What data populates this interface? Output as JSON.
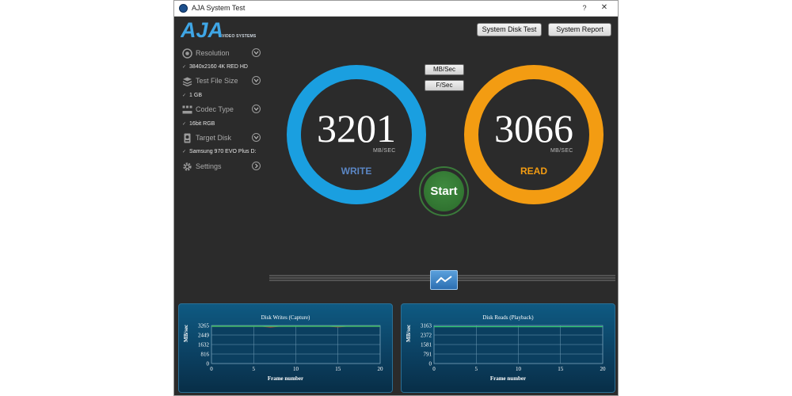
{
  "window": {
    "title": "AJA System Test",
    "help": "?",
    "close": "✕"
  },
  "logo": {
    "text": "AJA",
    "subtitle": "VIDEO SYSTEMS"
  },
  "sidebar": {
    "items": [
      {
        "label": "Resolution",
        "value": "3840x2160 4K RED HD",
        "icon": "resolution-icon"
      },
      {
        "label": "Test File Size",
        "value": "1 GB",
        "icon": "file-size-icon"
      },
      {
        "label": "Codec Type",
        "value": "16bit RGB",
        "icon": "codec-icon"
      },
      {
        "label": "Target Disk",
        "value": "Samsung 970 EVO Plus D:",
        "icon": "disk-icon"
      },
      {
        "label": "Settings",
        "value": "",
        "icon": "gear-icon"
      }
    ],
    "check": "✓"
  },
  "header": {
    "disk_test": "System Disk Test",
    "report": "System Report"
  },
  "units": {
    "mb": "MB/Sec",
    "fps": "F/Sec"
  },
  "write": {
    "value": "3201",
    "unit": "MB/SEC",
    "label": "WRITE",
    "color": "#1a9fe0"
  },
  "read": {
    "value": "3066",
    "unit": "MB/SEC",
    "label": "READ",
    "color": "#f39c12"
  },
  "start": "Start",
  "charts": [
    {
      "title": "Disk Writes (Capture)",
      "ylabel": "MB/sec",
      "xlabel": "Frame number",
      "yticks": [
        "3265",
        "2449",
        "1632",
        "816",
        "0"
      ],
      "xticks": [
        "0",
        "5",
        "10",
        "15",
        "20"
      ]
    },
    {
      "title": "Disk Reads (Playback)",
      "ylabel": "MB/sec",
      "xlabel": "Frame number",
      "yticks": [
        "3163",
        "2372",
        "1581",
        "791",
        "0"
      ],
      "xticks": [
        "0",
        "5",
        "10",
        "15",
        "20"
      ]
    }
  ],
  "chart_data": [
    {
      "type": "line",
      "title": "Disk Writes (Capture)",
      "xlabel": "Frame number",
      "ylabel": "MB/sec",
      "xlim": [
        0,
        20
      ],
      "ylim": [
        0,
        3265
      ],
      "x": [
        0,
        1,
        2,
        3,
        4,
        5,
        6,
        7,
        8,
        9,
        10,
        11,
        12,
        13,
        14,
        15,
        16,
        17,
        18,
        19,
        20
      ],
      "series": [
        {
          "values": [
            3201,
            3201,
            3201,
            3201,
            3201,
            3201,
            3201,
            3130,
            3201,
            3201,
            3201,
            3201,
            3201,
            3201,
            3201,
            3150,
            3201,
            3201,
            3201,
            3201,
            3201
          ],
          "color": "#c0392b"
        },
        {
          "values": [
            3201,
            3201,
            3201,
            3201,
            3201,
            3201,
            3201,
            3201,
            3201,
            3201,
            3201,
            3201,
            3201,
            3201,
            3201,
            3201,
            3201,
            3201,
            3201,
            3201,
            3201
          ],
          "color": "#2ecc71"
        }
      ],
      "grid": true
    },
    {
      "type": "line",
      "title": "Disk Reads (Playback)",
      "xlabel": "Frame number",
      "ylabel": "MB/sec",
      "xlim": [
        0,
        20
      ],
      "ylim": [
        0,
        3163
      ],
      "x": [
        0,
        1,
        2,
        3,
        4,
        5,
        6,
        7,
        8,
        9,
        10,
        11,
        12,
        13,
        14,
        15,
        16,
        17,
        18,
        19,
        20
      ],
      "series": [
        {
          "values": [
            3066,
            3066,
            3066,
            3066,
            3066,
            3066,
            3066,
            3066,
            3066,
            3066,
            3066,
            3066,
            3066,
            3066,
            3066,
            3066,
            3066,
            3066,
            3066,
            3066,
            3066
          ],
          "color": "#2ecc71"
        }
      ],
      "grid": true
    }
  ]
}
